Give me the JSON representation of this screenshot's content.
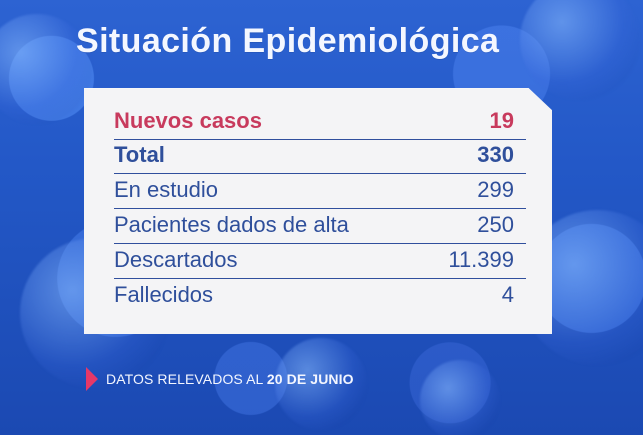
{
  "header": {
    "title": "Situación Epidemiológica"
  },
  "summary": {
    "rows": [
      {
        "label": "Nuevos casos",
        "value": "19"
      },
      {
        "label": "Total",
        "value": "330"
      },
      {
        "label": "En estudio",
        "value": "299"
      },
      {
        "label": "Pacientes dados de alta",
        "value": "250"
      },
      {
        "label": "Descartados",
        "value": "11.399"
      },
      {
        "label": "Fallecidos",
        "value": "4"
      }
    ]
  },
  "footer": {
    "prefix": "DATOS RELEVADOS AL",
    "date": "20 DE JUNIO"
  },
  "icons": {
    "note": "triangle-right-icon"
  },
  "colors": {
    "accent": "#c83a5d",
    "text": "#2f4f9b",
    "background": "#2358c7",
    "card": "#f4f4f6"
  }
}
